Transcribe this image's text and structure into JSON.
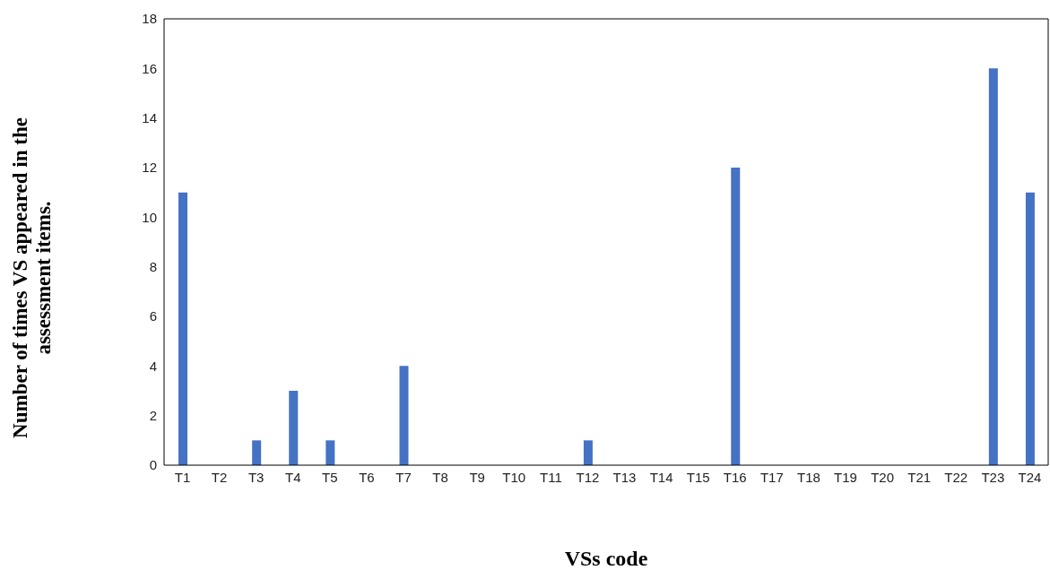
{
  "chart_data": {
    "type": "bar",
    "xlabel": "VSs code",
    "ylabel": "Number of times VS appeared in the assessment items.",
    "categories": [
      "T1",
      "T2",
      "T3",
      "T4",
      "T5",
      "T6",
      "T7",
      "T8",
      "T9",
      "T10",
      "T11",
      "T12",
      "T13",
      "T14",
      "T15",
      "T16",
      "T17",
      "T18",
      "T19",
      "T20",
      "T21",
      "T22",
      "T23",
      "T24"
    ],
    "values": [
      11,
      0,
      1,
      3,
      1,
      0,
      4,
      0,
      0,
      0,
      0,
      1,
      0,
      0,
      0,
      12,
      0,
      0,
      0,
      0,
      0,
      0,
      16,
      11
    ],
    "color": "#4472c4",
    "ylim": [
      0,
      18
    ],
    "yticks": [
      0,
      2,
      4,
      6,
      8,
      10,
      12,
      14,
      16,
      18
    ],
    "grid": false,
    "legend": false
  }
}
